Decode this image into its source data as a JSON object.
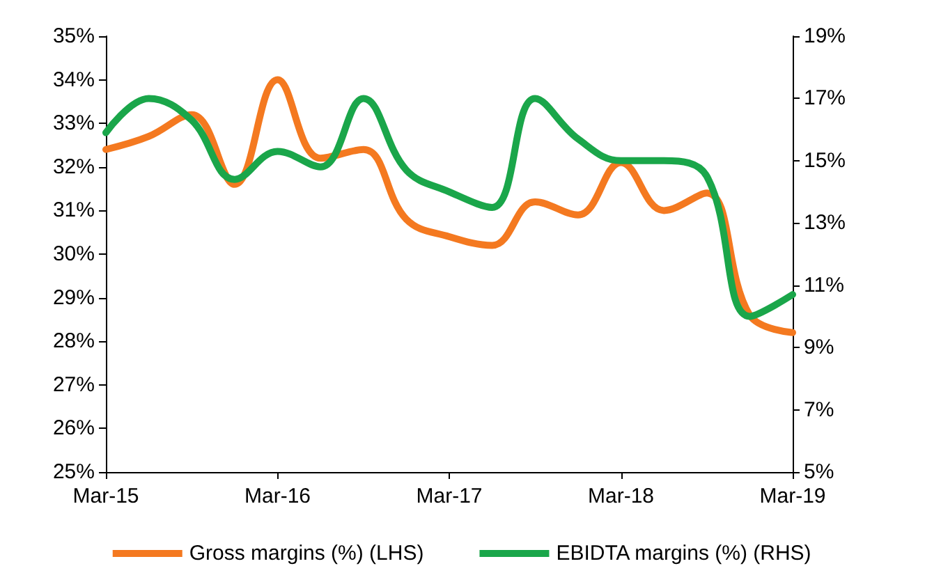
{
  "chart_data": {
    "type": "line",
    "categories": [
      "Mar-15",
      null,
      null,
      null,
      "Mar-16",
      null,
      null,
      null,
      "Mar-17",
      null,
      null,
      null,
      "Mar-18",
      null,
      null,
      null,
      "Mar-19"
    ],
    "series": [
      {
        "name": "Gross margins (%) (LHS)",
        "color": "#f47920",
        "values": [
          32.4,
          32.7,
          33.2,
          31.6,
          34.0,
          32.2,
          32.4,
          30.8,
          30.4,
          30.2,
          31.2,
          30.9,
          32.1,
          31.0,
          31.4,
          28.6,
          28.2
        ]
      },
      {
        "name": "EBIDTA margins (%) (RHS)",
        "color": "#1aa64a",
        "axis": "y2",
        "values": [
          15.9,
          17.0,
          16.3,
          14.4,
          15.3,
          14.8,
          17.0,
          14.7,
          14.0,
          13.5,
          17.0,
          15.7,
          15.0,
          15.0,
          14.5,
          10.0,
          10.7
        ]
      }
    ],
    "ylim": [
      25,
      35
    ],
    "yticks": [
      {
        "value": 25,
        "label": "25%"
      },
      {
        "value": 26,
        "label": "26%"
      },
      {
        "value": 27,
        "label": "27%"
      },
      {
        "value": 28,
        "label": "28%"
      },
      {
        "value": 29,
        "label": "29%"
      },
      {
        "value": 30,
        "label": "30%"
      },
      {
        "value": 31,
        "label": "31%"
      },
      {
        "value": 32,
        "label": "32%"
      },
      {
        "value": 33,
        "label": "33%"
      },
      {
        "value": 34,
        "label": "34%"
      },
      {
        "value": 35,
        "label": "35%"
      }
    ],
    "y2lim": [
      5,
      19
    ],
    "y2ticks": [
      {
        "value": 5,
        "label": "5%"
      },
      {
        "value": 7,
        "label": "7%"
      },
      {
        "value": 9,
        "label": "9%"
      },
      {
        "value": 11,
        "label": "11%"
      },
      {
        "value": 13,
        "label": "13%"
      },
      {
        "value": 15,
        "label": "15%"
      },
      {
        "value": 17,
        "label": "17%"
      },
      {
        "value": 19,
        "label": "19%"
      }
    ],
    "grid": false,
    "legend": "bottom",
    "marker": "none",
    "line_style": "solid"
  }
}
